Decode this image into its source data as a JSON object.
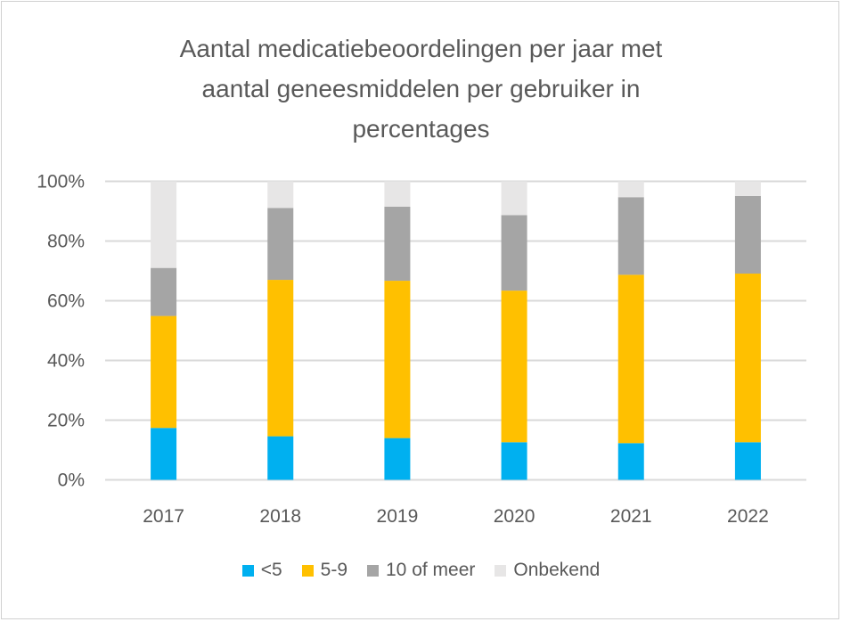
{
  "chart_data": {
    "type": "bar",
    "stacked": true,
    "title": "Aantal medicatiebeoordelingen per jaar met aantal geneesmiddelen per gebruiker in percentages",
    "title_lines": [
      "Aantal medicatiebeoordelingen per jaar met",
      "aantal geneesmiddelen per gebruiker in",
      "percentages"
    ],
    "xlabel": "",
    "ylabel": "",
    "categories": [
      "2017",
      "2018",
      "2019",
      "2020",
      "2021",
      "2022"
    ],
    "ylim": [
      0,
      100
    ],
    "yticks": [
      "0%",
      "20%",
      "40%",
      "60%",
      "80%",
      "100%"
    ],
    "grid": true,
    "legend_position": "bottom",
    "series": [
      {
        "name": "<5",
        "color": "#00b0f0",
        "values": [
          17.4,
          14.6,
          14.0,
          12.6,
          12.3,
          12.6
        ]
      },
      {
        "name": "5-9",
        "color": "#ffc000",
        "values": [
          37.5,
          52.4,
          52.7,
          50.8,
          56.4,
          56.5
        ]
      },
      {
        "name": "10 of meer",
        "color": "#a5a5a5",
        "values": [
          16.1,
          24.1,
          24.8,
          25.3,
          26.0,
          26.0
        ]
      },
      {
        "name": "Onbekend",
        "color": "#e7e6e6",
        "values": [
          29.0,
          8.9,
          8.5,
          11.3,
          5.3,
          4.9
        ]
      }
    ]
  }
}
